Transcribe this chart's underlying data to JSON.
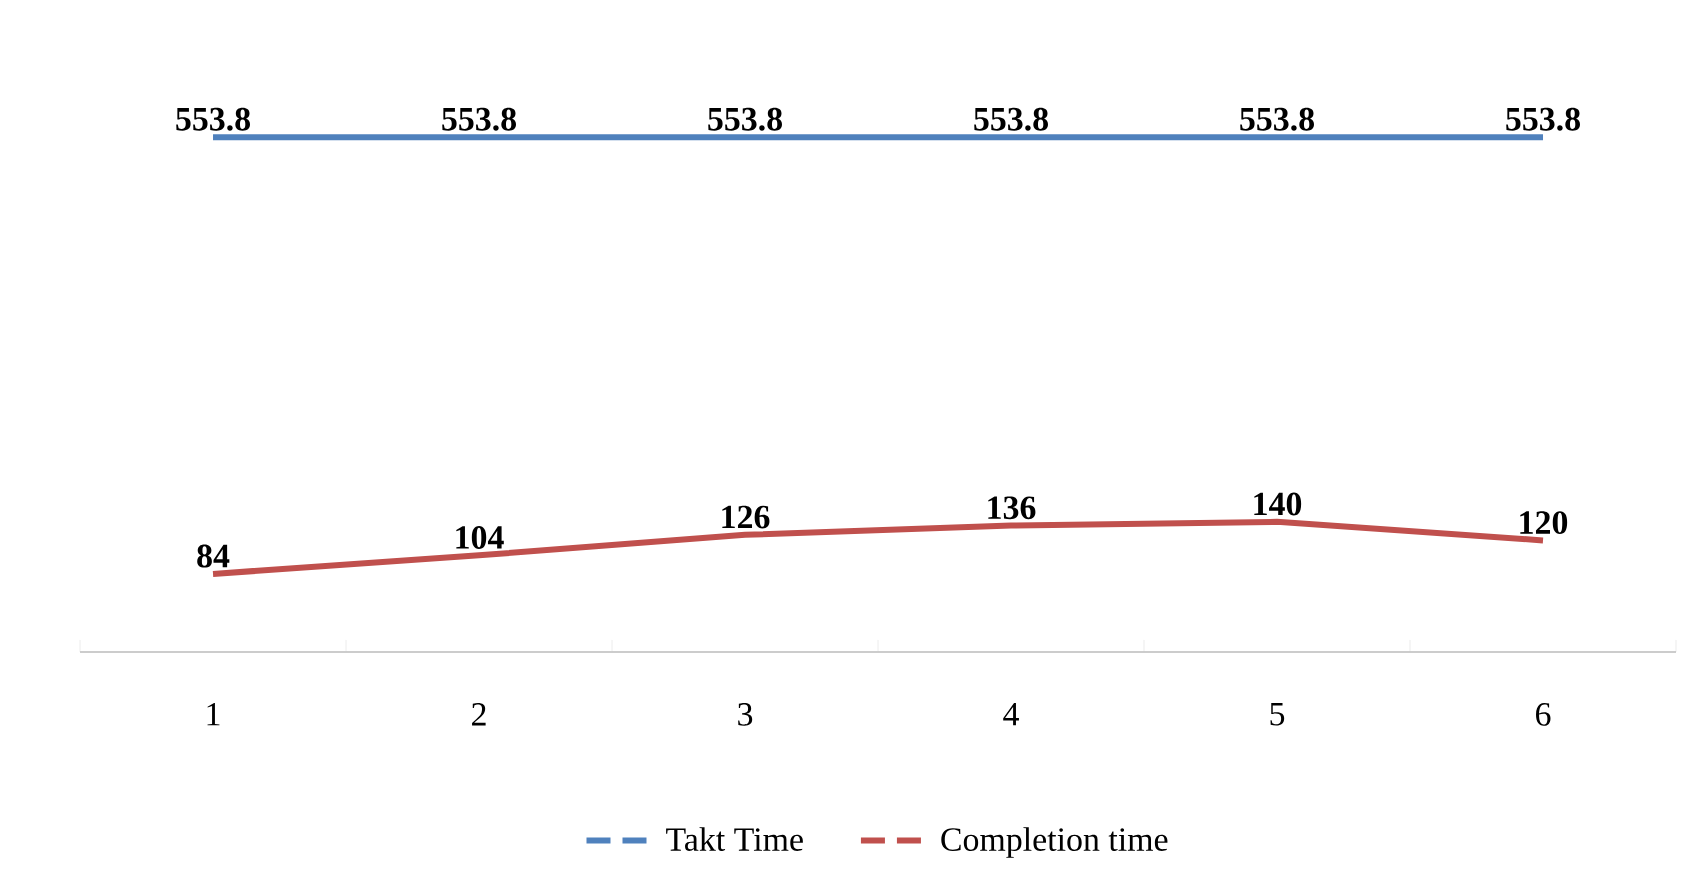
{
  "chart_data": {
    "type": "line",
    "categories": [
      "1",
      "2",
      "3",
      "4",
      "5",
      "6"
    ],
    "series": [
      {
        "name": "Takt Time",
        "color": "#4f81bd",
        "values": [
          553.8,
          553.8,
          553.8,
          553.8,
          553.8,
          553.8
        ]
      },
      {
        "name": "Completion time",
        "color": "#c0504d",
        "values": [
          84,
          104,
          126,
          136,
          140,
          120
        ]
      }
    ],
    "tick_labels": "x",
    "data_labels": true,
    "legend": "bottom",
    "line_style": "solid"
  }
}
